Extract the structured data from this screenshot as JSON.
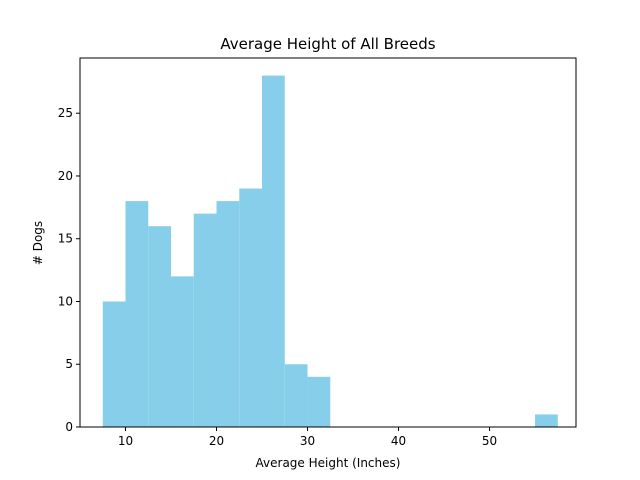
{
  "chart_data": {
    "type": "bar",
    "title": "Average Height of All Breeds",
    "xlabel": "Average Height (Inches)",
    "ylabel": "# Dogs",
    "xlim": [
      5.0,
      59.5
    ],
    "ylim": [
      0,
      29.4
    ],
    "xticks": [
      10,
      20,
      30,
      40,
      50
    ],
    "yticks": [
      0,
      5,
      10,
      15,
      20,
      25
    ],
    "bar_color": "#87ceeb",
    "grid": false,
    "bins": [
      {
        "x0": 7.5,
        "x1": 10.0,
        "count": 10
      },
      {
        "x0": 10.0,
        "x1": 12.5,
        "count": 18
      },
      {
        "x0": 12.5,
        "x1": 15.0,
        "count": 16
      },
      {
        "x0": 15.0,
        "x1": 17.5,
        "count": 12
      },
      {
        "x0": 17.5,
        "x1": 20.0,
        "count": 17
      },
      {
        "x0": 20.0,
        "x1": 22.5,
        "count": 18
      },
      {
        "x0": 22.5,
        "x1": 25.0,
        "count": 19
      },
      {
        "x0": 25.0,
        "x1": 27.5,
        "count": 28
      },
      {
        "x0": 27.5,
        "x1": 30.0,
        "count": 5
      },
      {
        "x0": 30.0,
        "x1": 32.5,
        "count": 4
      },
      {
        "x0": 32.5,
        "x1": 35.0,
        "count": 0
      },
      {
        "x0": 35.0,
        "x1": 37.5,
        "count": 0
      },
      {
        "x0": 37.5,
        "x1": 40.0,
        "count": 0
      },
      {
        "x0": 40.0,
        "x1": 42.5,
        "count": 0
      },
      {
        "x0": 42.5,
        "x1": 45.0,
        "count": 0
      },
      {
        "x0": 45.0,
        "x1": 47.5,
        "count": 0
      },
      {
        "x0": 47.5,
        "x1": 50.0,
        "count": 0
      },
      {
        "x0": 50.0,
        "x1": 52.5,
        "count": 0
      },
      {
        "x0": 52.5,
        "x1": 55.0,
        "count": 0
      },
      {
        "x0": 55.0,
        "x1": 57.5,
        "count": 1
      }
    ]
  }
}
